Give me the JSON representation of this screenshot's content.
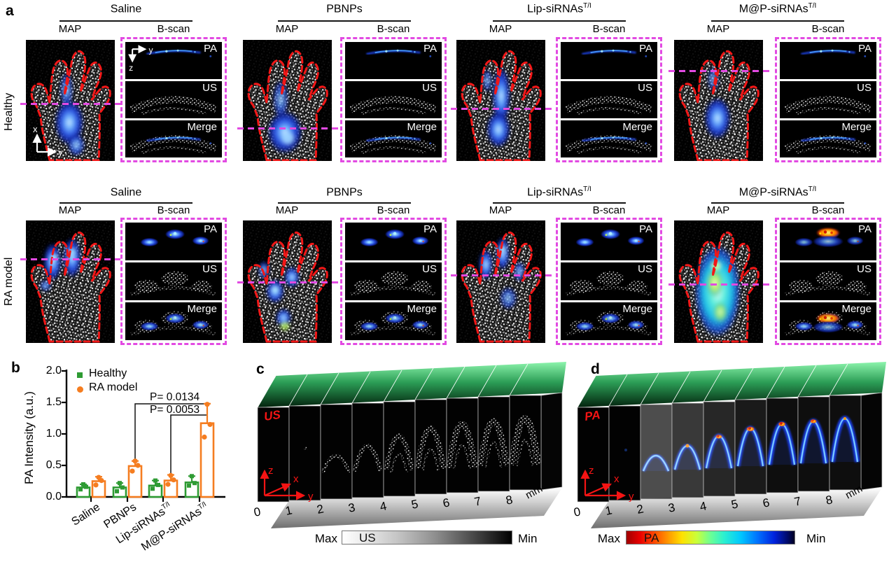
{
  "panel_letters": {
    "a": "a",
    "b": "b",
    "c": "c",
    "d": "d"
  },
  "panel_a": {
    "row_labels": [
      "Healthy",
      "RA model"
    ],
    "groups": [
      {
        "name": "Saline",
        "sup": ""
      },
      {
        "name": "PBNPs",
        "sup": ""
      },
      {
        "name": "Lip-siRNAs",
        "sup": "T/I"
      },
      {
        "name": "M@P-siRNAs",
        "sup": "T/I"
      }
    ],
    "map_label": "MAP",
    "bscan_label": "B-scan",
    "bscan_sub_labels": [
      "PA",
      "US",
      "Merge"
    ],
    "map_axes": {
      "x": "x",
      "y": "y"
    },
    "bscan_axes": {
      "y": "y",
      "z": "z"
    }
  },
  "panel_b": {
    "ylabel": "PA Intensity (a.u.)",
    "yticks": [
      "0.0",
      "0.5",
      "1.0",
      "1.5",
      "2.0"
    ],
    "categories": [
      {
        "label": "Saline",
        "sup": ""
      },
      {
        "label": "PBNPs",
        "sup": ""
      },
      {
        "label": "Lip-siRNAs",
        "sup": "T/I"
      },
      {
        "label": "M@P-siRNAs",
        "sup": "T/I"
      }
    ],
    "pvalues": [
      "P= 0.0134",
      "P= 0.0053"
    ]
  },
  "chart_data": {
    "type": "bar",
    "title": "",
    "xlabel": "",
    "ylabel": "PA Intensity (a.u.)",
    "ylim": [
      0,
      2.0
    ],
    "grid": false,
    "legend_position": "top-left",
    "categories": [
      "Saline",
      "PBNPs",
      "Lip-siRNAs T/I",
      "M@P-siRNAs T/I"
    ],
    "series": [
      {
        "name": "Healthy",
        "color": "#2e9b33",
        "values": [
          0.15,
          0.15,
          0.18,
          0.23
        ],
        "errors": [
          0.05,
          0.07,
          0.08,
          0.1
        ],
        "points": [
          [
            0.12,
            0.16,
            0.2
          ],
          [
            0.09,
            0.15,
            0.22
          ],
          [
            0.13,
            0.19,
            0.26
          ],
          [
            0.18,
            0.22,
            0.33
          ]
        ]
      },
      {
        "name": "RA model",
        "color": "#f57d20",
        "values": [
          0.25,
          0.49,
          0.26,
          1.17
        ],
        "errors": [
          0.07,
          0.08,
          0.09,
          0.31
        ],
        "points": [
          [
            0.19,
            0.26,
            0.31
          ],
          [
            0.41,
            0.5,
            0.57
          ],
          [
            0.2,
            0.27,
            0.34
          ],
          [
            0.95,
            1.15,
            1.47
          ]
        ]
      }
    ],
    "annotations": [
      {
        "text": "P= 0.0134",
        "compare": [
          "PBNPs / RA model",
          "M@P-siRNAs T/I / RA model"
        ]
      },
      {
        "text": "P= 0.0053",
        "compare": [
          "Lip-siRNAs T/I / RA model",
          "M@P-siRNAs T/I / RA model"
        ]
      }
    ]
  },
  "panel_c": {
    "modality": "US",
    "depth_ticks": [
      "0",
      "1",
      "2",
      "3",
      "4",
      "5",
      "6",
      "7",
      "8"
    ],
    "unit": "mm",
    "axes": {
      "x": "x",
      "y": "y",
      "z": "z"
    },
    "colorbar": {
      "max": "Max",
      "label": "US",
      "min": "Min"
    }
  },
  "panel_d": {
    "modality": "PA",
    "depth_ticks": [
      "0",
      "1",
      "2",
      "3",
      "4",
      "5",
      "6",
      "7",
      "8"
    ],
    "unit": "mm",
    "axes": {
      "x": "x",
      "y": "y",
      "z": "z"
    },
    "colorbar": {
      "max": "Max",
      "label": "PA",
      "min": "Min"
    }
  },
  "colors": {
    "healthy": "#2e9b33",
    "ra_model": "#f57d20",
    "magenta_dash": "#e24ae2",
    "red_outline": "#f21717"
  }
}
